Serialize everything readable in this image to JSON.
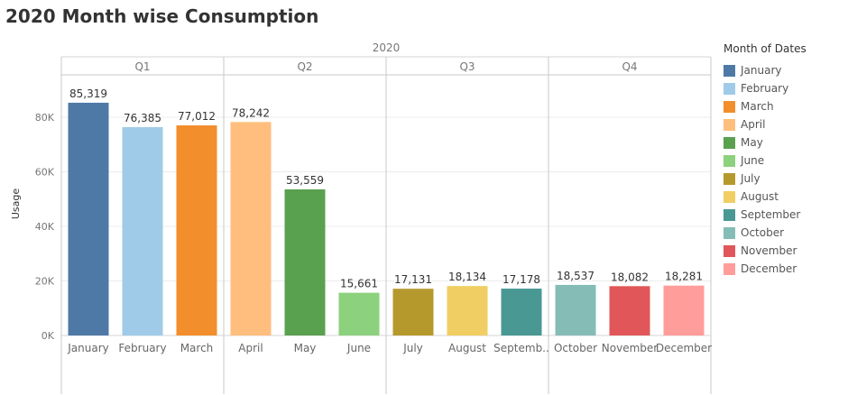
{
  "title": "2020 Month wise Consumption",
  "chart_data": {
    "type": "bar",
    "title": "2020 Month wise Consumption",
    "xlabel": "",
    "ylabel": "Usage",
    "year_label": "2020",
    "ylim": [
      0,
      92000
    ],
    "y_ticks": [
      0,
      20000,
      40000,
      60000,
      80000
    ],
    "y_tick_labels": [
      "0K",
      "20K",
      "40K",
      "60K",
      "80K"
    ],
    "grid": true,
    "legend_position": "right",
    "quarters": [
      {
        "label": "Q1",
        "start": 0,
        "count": 3
      },
      {
        "label": "Q2",
        "start": 3,
        "count": 3
      },
      {
        "label": "Q3",
        "start": 6,
        "count": 3
      },
      {
        "label": "Q4",
        "start": 9,
        "count": 3
      }
    ],
    "categories": [
      "January",
      "February",
      "March",
      "April",
      "May",
      "June",
      "July",
      "August",
      "Septemb..",
      "October",
      "November",
      "December"
    ],
    "values": [
      85319,
      76385,
      77012,
      78242,
      53559,
      15661,
      17131,
      18134,
      17178,
      18537,
      18082,
      18281
    ],
    "value_labels": [
      "85,319",
      "76,385",
      "77,012",
      "78,242",
      "53,559",
      "15,661",
      "17,131",
      "18,134",
      "17,178",
      "18,537",
      "18,082",
      "18,281"
    ],
    "colors": [
      "#4e79a7",
      "#a0cbe8",
      "#f28e2b",
      "#ffbe7d",
      "#59a14f",
      "#8cd17d",
      "#b6992d",
      "#f1ce63",
      "#499894",
      "#86bcb6",
      "#e15759",
      "#ff9d9a"
    ]
  },
  "legend": {
    "title": "Month of Dates",
    "items": [
      {
        "label": "January",
        "color": "#4e79a7"
      },
      {
        "label": "February",
        "color": "#a0cbe8"
      },
      {
        "label": "March",
        "color": "#f28e2b"
      },
      {
        "label": "April",
        "color": "#ffbe7d"
      },
      {
        "label": "May",
        "color": "#59a14f"
      },
      {
        "label": "June",
        "color": "#8cd17d"
      },
      {
        "label": "July",
        "color": "#b6992d"
      },
      {
        "label": "August",
        "color": "#f1ce63"
      },
      {
        "label": "September",
        "color": "#499894"
      },
      {
        "label": "October",
        "color": "#86bcb6"
      },
      {
        "label": "November",
        "color": "#e15759"
      },
      {
        "label": "December",
        "color": "#ff9d9a"
      }
    ]
  }
}
